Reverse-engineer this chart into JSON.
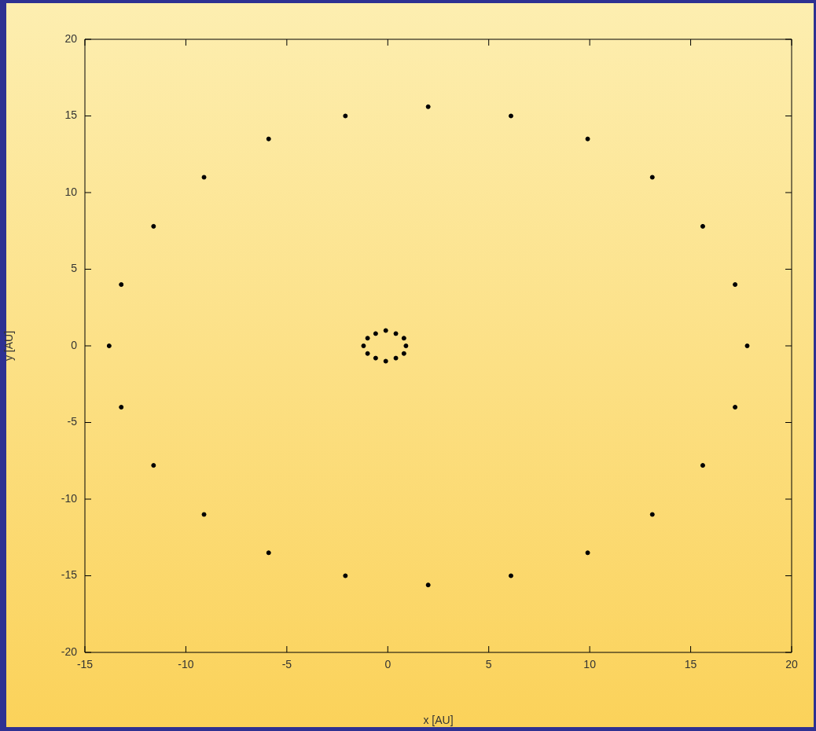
{
  "chart_data": {
    "type": "scatter",
    "xlabel": "x [AU]",
    "ylabel": "y [AU]",
    "xlim": [
      -15,
      20
    ],
    "xticks": [
      -15,
      -10,
      -5,
      0,
      5,
      10,
      15,
      20
    ],
    "ylim": [
      -20,
      20
    ],
    "yticks": [
      -20,
      -15,
      -10,
      -5,
      0,
      5,
      10,
      15,
      20
    ],
    "grid": false,
    "legend": false,
    "marker": "circle",
    "series": [
      {
        "color": "#000000",
        "x": [
          17.8,
          17.2,
          15.6,
          13.1,
          9.9,
          6.1,
          2.0,
          -2.1,
          -5.9,
          -9.1,
          -11.6,
          -13.2,
          -13.8,
          -13.2,
          -11.6,
          -9.1,
          -5.9,
          -2.1,
          2.0,
          6.1,
          9.9,
          13.1,
          15.6,
          17.2
        ],
        "values": [
          0,
          4.0,
          7.8,
          11.0,
          13.5,
          15.0,
          15.6,
          15.0,
          13.5,
          11.0,
          7.8,
          4.0,
          0,
          -4.0,
          -7.8,
          -11.0,
          -13.5,
          -15.0,
          -15.6,
          -15.0,
          -13.5,
          -11.0,
          -7.8,
          -4.0
        ]
      },
      {
        "color": "#000000",
        "x": [
          0.9,
          0.8,
          0.4,
          -0.1,
          -0.6,
          -1.0,
          -1.2,
          -1.0,
          -0.6,
          -0.1,
          0.4,
          0.8
        ],
        "values": [
          0,
          0.5,
          0.8,
          1.0,
          0.8,
          0.5,
          0,
          -0.5,
          -0.8,
          -1.0,
          -0.8,
          -0.5
        ]
      }
    ]
  }
}
